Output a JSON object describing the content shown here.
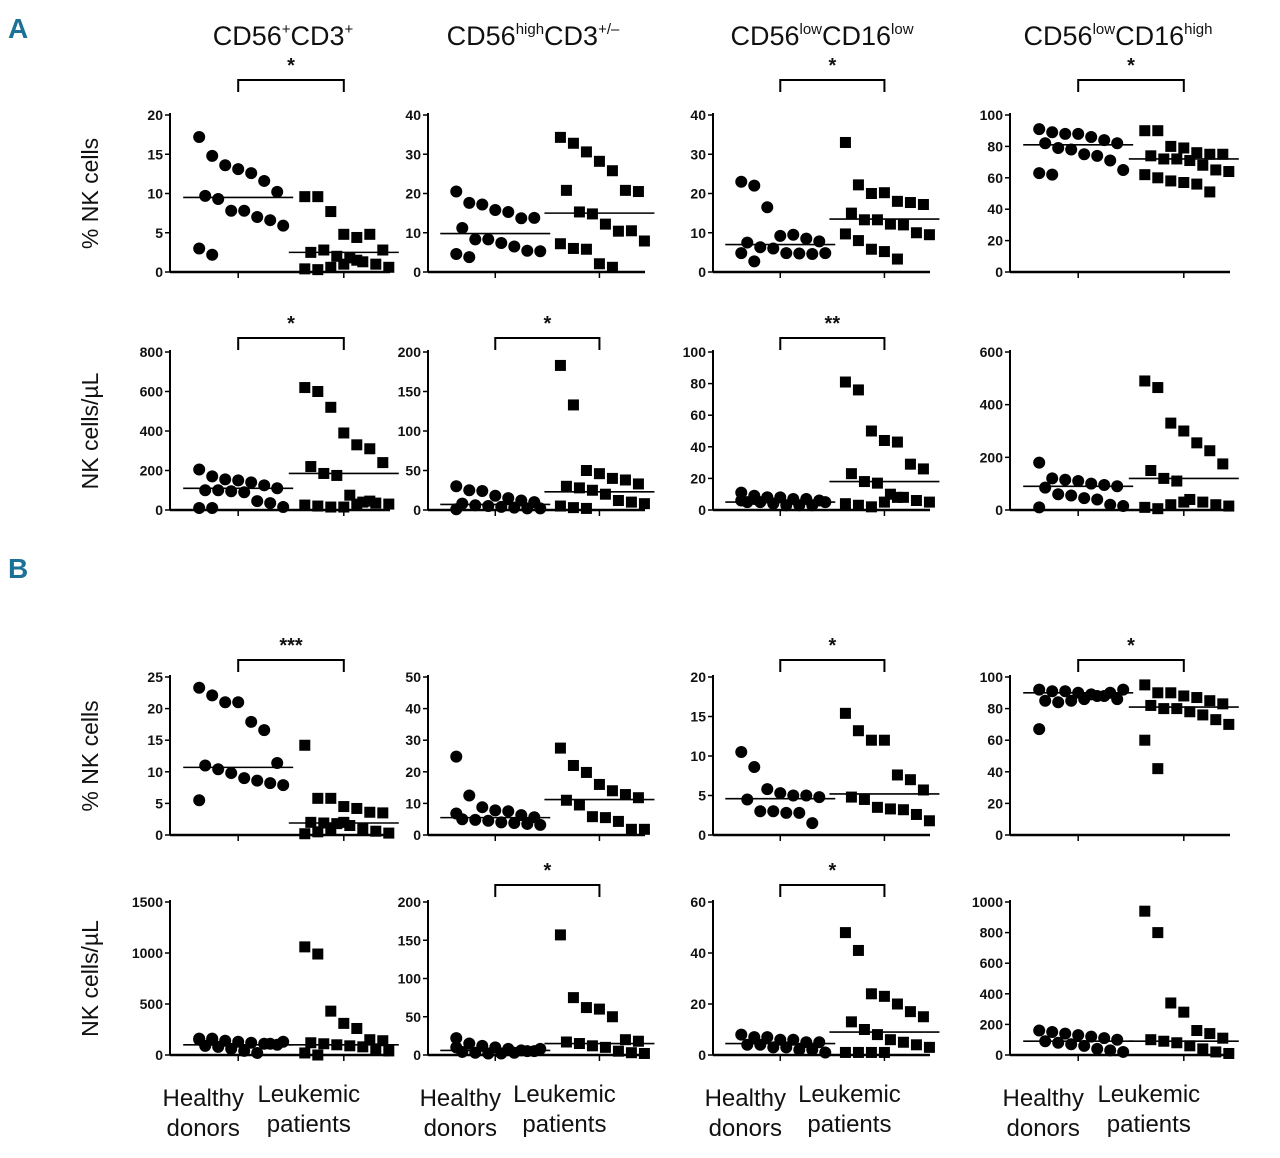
{
  "panel_labels": [
    "A",
    "B"
  ],
  "column_titles": [
    [
      {
        "t": "CD56",
        "s": false
      },
      {
        "t": "+",
        "s": true
      },
      {
        "t": "CD3",
        "s": false
      },
      {
        "t": "+",
        "s": true
      }
    ],
    [
      {
        "t": "CD56",
        "s": false
      },
      {
        "t": "high",
        "s": true
      },
      {
        "t": "CD3",
        "s": false
      },
      {
        "t": "+/–",
        "s": true
      }
    ],
    [
      {
        "t": "CD56",
        "s": false
      },
      {
        "t": "low",
        "s": true
      },
      {
        "t": "CD16",
        "s": false
      },
      {
        "t": "low",
        "s": true
      }
    ],
    [
      {
        "t": "CD56",
        "s": false
      },
      {
        "t": "low",
        "s": true
      },
      {
        "t": "CD16",
        "s": false
      },
      {
        "t": "high",
        "s": true
      }
    ]
  ],
  "row_ylabels": [
    "% NK cells",
    "NK cells/µL",
    "% NK cells",
    "NK cells/µL"
  ],
  "groups": [
    {
      "line1": "Healthy",
      "line2": "donors"
    },
    {
      "line1": "Leukemic",
      "line2": "patients"
    }
  ],
  "colors": {
    "panel_label": "#1b7196",
    "marker": "#000000"
  },
  "chart_data": {
    "type": "scatter",
    "xlabel": "",
    "panels": [
      {
        "section": "A",
        "row": 0,
        "col": 0,
        "ylabel": "% NK cells",
        "ylim": [
          0,
          20
        ],
        "ticks": [
          0,
          5,
          10,
          15,
          20
        ],
        "sig": "*",
        "healthy": [
          17.2,
          14.8,
          13.6,
          13.1,
          12.6,
          11.6,
          10.2,
          9.7,
          9.3,
          7.8,
          7.8,
          7.0,
          6.6,
          5.9,
          3.0,
          2.2
        ],
        "healthy_median": 9.5,
        "leukemic": [
          9.6,
          9.6,
          7.7,
          4.8,
          4.4,
          4.8,
          2.8,
          2.5,
          2.8,
          2.0,
          1.8,
          1.3,
          1.0,
          0.6,
          0.4,
          0.3,
          0.6,
          1.0,
          1.5
        ],
        "leukemic_median": 2.5
      },
      {
        "section": "A",
        "row": 0,
        "col": 1,
        "ylabel": "% NK cells",
        "ylim": [
          0,
          40
        ],
        "ticks": [
          0,
          10,
          20,
          30,
          40
        ],
        "sig": "",
        "healthy": [
          20.5,
          17.6,
          17.2,
          15.8,
          15.3,
          13.7,
          13.8,
          11.2,
          8.3,
          8.3,
          7.4,
          6.5,
          5.4,
          5.3,
          4.6,
          3.8
        ],
        "healthy_median": 9.8,
        "leukemic": [
          34.3,
          32.8,
          30.6,
          28.2,
          25.8,
          20.8,
          20.5,
          20.8,
          15.3,
          14.8,
          12.2,
          10.4,
          10.5,
          7.9,
          7.2,
          6.0,
          5.8,
          2.1,
          1.2
        ],
        "leukemic_median": 15
      },
      {
        "section": "A",
        "row": 0,
        "col": 2,
        "ylabel": "% NK cells",
        "ylim": [
          0,
          40
        ],
        "ticks": [
          0,
          10,
          20,
          30,
          40
        ],
        "sig": "*",
        "healthy": [
          23,
          22,
          16.5,
          9.2,
          9.5,
          8.5,
          7.8,
          7.5,
          6.3,
          6,
          4.8,
          4.7,
          4.6,
          4.8,
          4.8,
          2.7
        ],
        "healthy_median": 7,
        "leukemic": [
          33,
          22.2,
          20,
          20.2,
          18,
          17.7,
          17.2,
          15,
          13.3,
          13.3,
          12.2,
          12,
          10,
          9.5,
          9.7,
          8,
          5.8,
          5.2,
          3.3
        ],
        "leukemic_median": 13.5
      },
      {
        "section": "A",
        "row": 0,
        "col": 3,
        "ylabel": "% NK cells",
        "ylim": [
          0,
          100
        ],
        "ticks": [
          0,
          20,
          40,
          60,
          80,
          100
        ],
        "sig": "*",
        "healthy": [
          91,
          89,
          88,
          88,
          86,
          84,
          82,
          82,
          79,
          78,
          75,
          74,
          71,
          65,
          63,
          62
        ],
        "healthy_median": 81,
        "leukemic": [
          90,
          90,
          80,
          79,
          76,
          75,
          75,
          74,
          72,
          72,
          71,
          68,
          65,
          64,
          62,
          60,
          58,
          57,
          56,
          51
        ],
        "leukemic_median": 72
      },
      {
        "section": "A",
        "row": 1,
        "col": 0,
        "ylabel": "NK cells/µL",
        "ylim": [
          0,
          800
        ],
        "ticks": [
          0,
          200,
          400,
          600,
          800
        ],
        "sig": "*",
        "healthy": [
          205,
          170,
          155,
          150,
          140,
          125,
          110,
          100,
          100,
          95,
          90,
          45,
          35,
          15,
          10,
          10
        ],
        "healthy_median": 110,
        "leukemic": [
          620,
          600,
          520,
          390,
          330,
          310,
          240,
          220,
          185,
          175,
          75,
          40,
          35,
          30,
          25,
          20,
          15,
          15,
          30,
          45
        ],
        "leukemic_median": 185
      },
      {
        "section": "A",
        "row": 1,
        "col": 1,
        "ylabel": "NK cells/µL",
        "ylim": [
          0,
          200
        ],
        "ticks": [
          0,
          50,
          100,
          150,
          200
        ],
        "sig": "*",
        "healthy": [
          30,
          25,
          24,
          18,
          15,
          12,
          10,
          8,
          6,
          5,
          4,
          3,
          2,
          2,
          1
        ],
        "healthy_median": 7,
        "leukemic": [
          183,
          133,
          50,
          46,
          40,
          38,
          33,
          30,
          28,
          25,
          20,
          12,
          10,
          8,
          5,
          3,
          2
        ],
        "leukemic_median": 23
      },
      {
        "section": "A",
        "row": 1,
        "col": 2,
        "ylabel": "NK cells/µL",
        "ylim": [
          0,
          100
        ],
        "ticks": [
          0,
          20,
          40,
          60,
          80,
          100
        ],
        "sig": "**",
        "healthy": [
          11,
          9,
          8,
          8,
          7,
          7,
          6,
          5,
          5,
          4,
          3,
          3,
          3,
          5,
          6,
          7,
          8
        ],
        "healthy_median": 5,
        "leukemic": [
          81,
          76,
          50,
          44,
          43,
          29,
          26,
          23,
          18,
          17,
          10,
          8,
          6,
          5,
          4,
          3,
          2,
          5,
          8
        ],
        "leukemic_median": 18
      },
      {
        "section": "A",
        "row": 1,
        "col": 3,
        "ylabel": "NK cells/µL",
        "ylim": [
          0,
          600
        ],
        "ticks": [
          0,
          200,
          400,
          600
        ],
        "sig": "",
        "healthy": [
          180,
          120,
          115,
          110,
          100,
          95,
          90,
          85,
          60,
          55,
          45,
          40,
          20,
          15,
          10
        ],
        "healthy_median": 90,
        "leukemic": [
          490,
          465,
          330,
          300,
          255,
          225,
          175,
          150,
          120,
          110,
          40,
          30,
          20,
          15,
          10,
          5,
          20,
          30
        ],
        "leukemic_median": 120
      },
      {
        "section": "B",
        "row": 2,
        "col": 0,
        "ylabel": "% NK cells",
        "ylim": [
          0,
          25
        ],
        "ticks": [
          0,
          5,
          10,
          15,
          20,
          25
        ],
        "sig": "***",
        "healthy": [
          23.3,
          22.1,
          21,
          21,
          17.9,
          16.6,
          11.4,
          11,
          10.4,
          9.8,
          9,
          8.6,
          8.2,
          7.9,
          5.5
        ],
        "healthy_median": 10.7,
        "leukemic": [
          14.2,
          5.8,
          5.8,
          4.5,
          4.2,
          3.6,
          3.5,
          2,
          1.9,
          1.8,
          1.5,
          1,
          0.6,
          0.3,
          0.2,
          0.5,
          1,
          2
        ],
        "leukemic_median": 1.9
      },
      {
        "section": "B",
        "row": 2,
        "col": 1,
        "ylabel": "% NK cells",
        "ylim": [
          0,
          50
        ],
        "ticks": [
          0,
          10,
          20,
          30,
          40,
          50
        ],
        "sig": "",
        "healthy": [
          24.8,
          12.5,
          8.8,
          7.8,
          7.5,
          6.3,
          5.6,
          5,
          4.8,
          4.5,
          4,
          3.8,
          3.5,
          3.2,
          6.8
        ],
        "healthy_median": 5.5,
        "leukemic": [
          27.5,
          22,
          19.8,
          16,
          14,
          12.8,
          11.8,
          11,
          9.5,
          5.8,
          5.5,
          4.3,
          1.8,
          1.8
        ],
        "leukemic_median": 11.2
      },
      {
        "section": "B",
        "row": 2,
        "col": 2,
        "ylabel": "% NK cells",
        "ylim": [
          0,
          20
        ],
        "ticks": [
          0,
          5,
          10,
          15,
          20
        ],
        "sig": "*",
        "healthy": [
          10.5,
          8.6,
          5.8,
          5.3,
          5,
          5,
          4.8,
          4.5,
          3,
          3,
          2.8,
          2.8,
          1.5
        ],
        "healthy_median": 4.6,
        "leukemic": [
          15.4,
          13.2,
          12,
          12,
          7.6,
          7,
          5.7,
          4.8,
          4.5,
          3.5,
          3.3,
          3.2,
          2.6,
          1.8
        ],
        "leukemic_median": 5.2
      },
      {
        "section": "B",
        "row": 2,
        "col": 3,
        "ylabel": "% NK cells",
        "ylim": [
          0,
          100
        ],
        "ticks": [
          0,
          20,
          40,
          60,
          80,
          100
        ],
        "sig": "*",
        "healthy": [
          92,
          91,
          91,
          90,
          89,
          88,
          86,
          85,
          84,
          85,
          86,
          88,
          90,
          92,
          67
        ],
        "healthy_median": 90,
        "leukemic": [
          95,
          90,
          90,
          88,
          87,
          85,
          83,
          82,
          80,
          80,
          78,
          76,
          73,
          70,
          60,
          42
        ],
        "leukemic_median": 81
      },
      {
        "section": "B",
        "row": 3,
        "col": 0,
        "ylabel": "NK cells/µL",
        "ylim": [
          0,
          1500
        ],
        "ticks": [
          0,
          500,
          1000,
          1500
        ],
        "sig": "",
        "healthy": [
          160,
          150,
          140,
          130,
          120,
          110,
          100,
          90,
          80,
          60,
          40,
          20,
          110,
          130,
          150,
          160
        ],
        "healthy_median": 100,
        "leukemic": [
          1060,
          990,
          430,
          310,
          260,
          150,
          140,
          120,
          110,
          100,
          90,
          80,
          60,
          40,
          20,
          0
        ],
        "leukemic_median": 100
      },
      {
        "section": "B",
        "row": 3,
        "col": 1,
        "ylabel": "NK cells/µL",
        "ylim": [
          0,
          200
        ],
        "ticks": [
          0,
          50,
          100,
          150,
          200
        ],
        "sig": "*",
        "healthy": [
          22,
          15,
          12,
          10,
          8,
          6,
          5,
          4,
          3,
          2,
          2,
          3,
          5,
          8,
          10
        ],
        "healthy_median": 6,
        "leukemic": [
          157,
          75,
          62,
          60,
          50,
          20,
          18,
          17,
          15,
          12,
          10,
          5,
          3,
          2
        ],
        "leukemic_median": 15
      },
      {
        "section": "B",
        "row": 3,
        "col": 2,
        "ylabel": "NK cells/µL",
        "ylim": [
          0,
          60
        ],
        "ticks": [
          0,
          20,
          40,
          60
        ],
        "sig": "*",
        "healthy": [
          8,
          7,
          7,
          6,
          6,
          5,
          5,
          4,
          4,
          3,
          3,
          2,
          2,
          1
        ],
        "healthy_median": 4.5,
        "leukemic": [
          48,
          41,
          24,
          23,
          20,
          17,
          15,
          13,
          10,
          8,
          6,
          5,
          4,
          3,
          1,
          1,
          1,
          1
        ],
        "leukemic_median": 9
      },
      {
        "section": "B",
        "row": 3,
        "col": 3,
        "ylabel": "NK cells/µL",
        "ylim": [
          0,
          1000
        ],
        "ticks": [
          0,
          200,
          400,
          600,
          800,
          1000
        ],
        "sig": "",
        "healthy": [
          160,
          150,
          140,
          130,
          120,
          110,
          100,
          90,
          80,
          70,
          60,
          40,
          30,
          20
        ],
        "healthy_median": 90,
        "leukemic": [
          940,
          800,
          340,
          280,
          160,
          140,
          110,
          100,
          90,
          80,
          60,
          40,
          20,
          10
        ],
        "leukemic_median": 90
      }
    ]
  }
}
